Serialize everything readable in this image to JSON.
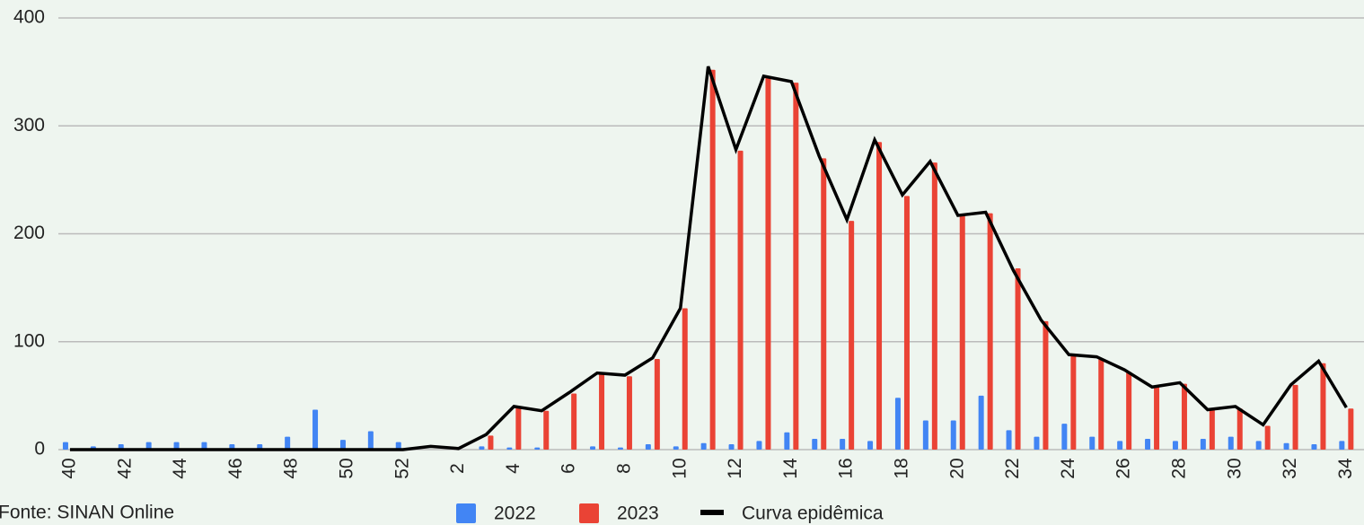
{
  "chart_data": {
    "type": "bar",
    "categories": [
      "40",
      null,
      "42",
      null,
      "44",
      null,
      "46",
      null,
      "48",
      null,
      "50",
      null,
      "52",
      null,
      "2",
      null,
      "4",
      null,
      "6",
      null,
      "8",
      null,
      "10",
      null,
      "12",
      null,
      "14",
      null,
      "16",
      null,
      "18",
      null,
      "20",
      null,
      "22",
      null,
      "24",
      null,
      "26",
      null,
      "28",
      null,
      "30",
      null,
      "32",
      null,
      "34"
    ],
    "series": [
      {
        "name": "2022",
        "type": "bar",
        "color": "#4285f4",
        "values": [
          7,
          3,
          5,
          7,
          7,
          7,
          5,
          5,
          12,
          37,
          9,
          17,
          7,
          0,
          0,
          3,
          2,
          2,
          0,
          3,
          2,
          5,
          3,
          6,
          5,
          8,
          16,
          10,
          10,
          8,
          48,
          27,
          27,
          50,
          18,
          12,
          24,
          12,
          8,
          10,
          8,
          10,
          12,
          8,
          6,
          5,
          8
        ]
      },
      {
        "name": "2023",
        "type": "bar",
        "color": "#ea4335",
        "values": [
          null,
          null,
          null,
          null,
          null,
          null,
          null,
          null,
          null,
          null,
          null,
          null,
          null,
          0,
          0,
          13,
          39,
          36,
          52,
          71,
          68,
          84,
          131,
          352,
          277,
          345,
          340,
          270,
          212,
          285,
          235,
          266,
          217,
          219,
          168,
          119,
          87,
          84,
          72,
          59,
          61,
          37,
          38,
          22,
          60,
          80,
          38
        ]
      },
      {
        "name": "Curva epidêmica",
        "type": "line",
        "color": "#000000",
        "values": [
          0,
          0,
          0,
          0,
          0,
          0,
          0,
          0,
          0,
          0,
          0,
          0,
          0,
          3,
          1,
          14,
          40,
          36,
          53,
          71,
          69,
          85,
          131,
          355,
          278,
          346,
          341,
          272,
          213,
          287,
          236,
          267,
          217,
          220,
          166,
          120,
          88,
          86,
          74,
          58,
          62,
          37,
          40,
          23,
          60,
          82,
          39
        ]
      }
    ],
    "ylim": [
      0,
      400
    ],
    "yticks": [
      0,
      100,
      200,
      300,
      400
    ],
    "grid": true,
    "source": "Fonte: SINAN Online"
  }
}
